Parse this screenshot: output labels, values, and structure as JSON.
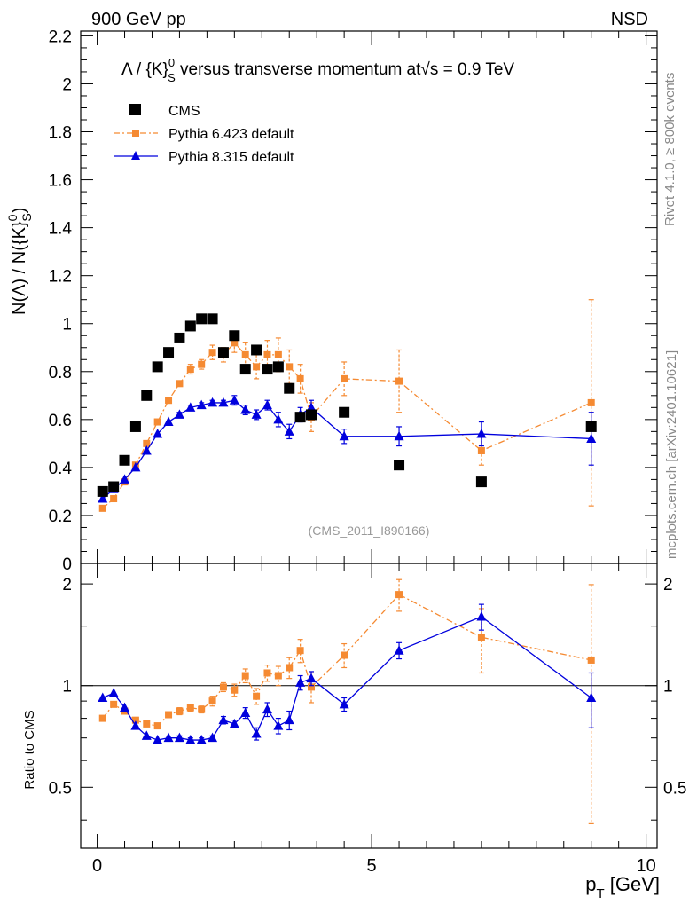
{
  "header": {
    "left": "900 GeV pp",
    "right": "NSD"
  },
  "side_labels": {
    "rivet": "Rivet 4.1.0, ≥ 800k events",
    "mcplots": "mcplots.cern.ch [arXiv:2401.10621]"
  },
  "colors": {
    "cms": "#000000",
    "pythia6": "#f58a32",
    "pythia8": "#0000dd"
  },
  "chart_data": [
    {
      "type": "scatter",
      "title": "Λ / {K}⁰ₛ versus transverse momentum at√s = 0.9 TeV",
      "title_parts": [
        "Λ / {K}",
        "0",
        "S",
        " versus transverse momentum at",
        "√",
        "s = 0.9 TeV"
      ],
      "ylabel": "N(Λ)  /  N({K}⁰ₛ)",
      "ylabel_parts": [
        "N(Λ)  /  N({K}",
        "0",
        "S",
        ")"
      ],
      "watermark": "(CMS_2011_I890166)",
      "xlim": [
        -0.3,
        10.2
      ],
      "ylim": [
        0,
        2.22
      ],
      "yticks": [
        0,
        0.2,
        0.4,
        0.6,
        0.8,
        1,
        1.2,
        1.4,
        1.6,
        1.8,
        2,
        2.2
      ],
      "ytick_labels": [
        "0",
        "0.2",
        "0.4",
        "0.6",
        "0.8",
        "1",
        "1.2",
        "1.4",
        "1.6",
        "1.8",
        "2",
        "2.2"
      ],
      "legend": {
        "placement": "top-left",
        "entries": [
          "CMS",
          "Pythia 6.423 default",
          "Pythia 8.315 default"
        ]
      },
      "series": [
        {
          "name": "CMS",
          "marker": "square",
          "x": [
            0.1,
            0.3,
            0.5,
            0.7,
            0.9,
            1.1,
            1.3,
            1.5,
            1.7,
            1.9,
            2.1,
            2.3,
            2.5,
            2.7,
            2.9,
            3.1,
            3.3,
            3.5,
            3.7,
            3.9,
            4.5,
            5.5,
            7.0,
            9.0
          ],
          "y": [
            0.3,
            0.32,
            0.43,
            0.57,
            0.7,
            0.82,
            0.88,
            0.94,
            0.99,
            1.02,
            1.02,
            0.88,
            0.95,
            0.81,
            0.89,
            0.81,
            0.82,
            0.73,
            0.61,
            0.62,
            0.63,
            0.41,
            0.34,
            0.57
          ]
        },
        {
          "name": "Pythia 6.423 default",
          "marker": "square-small",
          "line": "dashdot",
          "x": [
            0.1,
            0.3,
            0.5,
            0.7,
            0.9,
            1.1,
            1.3,
            1.5,
            1.7,
            1.9,
            2.1,
            2.3,
            2.5,
            2.7,
            2.9,
            3.1,
            3.3,
            3.5,
            3.7,
            3.9,
            4.5,
            5.5,
            7.0,
            9.0
          ],
          "y": [
            0.23,
            0.27,
            0.34,
            0.41,
            0.5,
            0.59,
            0.68,
            0.75,
            0.81,
            0.83,
            0.88,
            0.87,
            0.92,
            0.87,
            0.82,
            0.87,
            0.87,
            0.82,
            0.77,
            0.61,
            0.77,
            0.76,
            0.47,
            0.67
          ],
          "err": [
            0.0,
            0.0,
            0.0,
            0.0,
            0.0,
            0.0,
            0.0,
            0.01,
            0.02,
            0.02,
            0.03,
            0.03,
            0.04,
            0.05,
            0.05,
            0.06,
            0.07,
            0.07,
            0.06,
            0.06,
            0.07,
            0.13,
            0.06,
            0.43
          ]
        },
        {
          "name": "Pythia 8.315 default",
          "marker": "triangle",
          "line": "solid",
          "x": [
            0.1,
            0.3,
            0.5,
            0.7,
            0.9,
            1.1,
            1.3,
            1.5,
            1.7,
            1.9,
            2.1,
            2.3,
            2.5,
            2.7,
            2.9,
            3.1,
            3.3,
            3.5,
            3.7,
            3.9,
            4.5,
            5.5,
            7.0,
            9.0
          ],
          "y": [
            0.27,
            0.31,
            0.35,
            0.4,
            0.47,
            0.54,
            0.59,
            0.62,
            0.65,
            0.66,
            0.67,
            0.67,
            0.68,
            0.64,
            0.62,
            0.66,
            0.6,
            0.55,
            0.62,
            0.65,
            0.53,
            0.53,
            0.54,
            0.52
          ],
          "err": [
            0.0,
            0.0,
            0.0,
            0.0,
            0.0,
            0.0,
            0.0,
            0.01,
            0.01,
            0.01,
            0.01,
            0.01,
            0.02,
            0.02,
            0.02,
            0.02,
            0.03,
            0.03,
            0.03,
            0.03,
            0.03,
            0.04,
            0.05,
            0.11
          ]
        }
      ]
    },
    {
      "type": "scatter",
      "title": "",
      "ylabel": "Ratio to CMS",
      "xlabel": "p_T [GeV]",
      "xlabel_parts": [
        "p",
        "T",
        " [GeV]"
      ],
      "xlim": [
        -0.3,
        10.2
      ],
      "ylim": [
        0.33,
        2.3
      ],
      "yscale": "log",
      "yticks": [
        0.5,
        1,
        2
      ],
      "ytick_labels": [
        "0.5",
        "1",
        "2"
      ],
      "xticks": [
        0,
        5,
        10
      ],
      "xtick_labels": [
        "0",
        "5",
        "10"
      ],
      "reference_line": 1,
      "series": [
        {
          "name": "Pythia 6.423 default",
          "marker": "square-small",
          "line": "dashdot",
          "x": [
            0.1,
            0.3,
            0.5,
            0.7,
            0.9,
            1.1,
            1.3,
            1.5,
            1.7,
            1.9,
            2.1,
            2.3,
            2.5,
            2.7,
            2.9,
            3.1,
            3.3,
            3.5,
            3.7,
            3.9,
            4.5,
            5.5,
            7.0,
            9.0
          ],
          "y": [
            0.8,
            0.88,
            0.84,
            0.79,
            0.77,
            0.76,
            0.82,
            0.84,
            0.86,
            0.85,
            0.9,
            0.99,
            0.97,
            1.07,
            0.93,
            1.09,
            1.07,
            1.13,
            1.27,
            0.99,
            1.23,
            1.86,
            1.39,
            1.19
          ],
          "err": [
            0.01,
            0.01,
            0.01,
            0.01,
            0.01,
            0.01,
            0.01,
            0.02,
            0.02,
            0.02,
            0.03,
            0.03,
            0.04,
            0.05,
            0.05,
            0.06,
            0.07,
            0.08,
            0.1,
            0.1,
            0.1,
            0.2,
            0.3,
            0.8
          ]
        },
        {
          "name": "Pythia 8.315 default",
          "marker": "triangle",
          "line": "solid",
          "x": [
            0.1,
            0.3,
            0.5,
            0.7,
            0.9,
            1.1,
            1.3,
            1.5,
            1.7,
            1.9,
            2.1,
            2.3,
            2.5,
            2.7,
            2.9,
            3.1,
            3.3,
            3.5,
            3.7,
            3.9,
            4.5,
            5.5,
            7.0,
            9.0
          ],
          "y": [
            0.92,
            0.95,
            0.86,
            0.76,
            0.71,
            0.69,
            0.7,
            0.7,
            0.69,
            0.69,
            0.7,
            0.79,
            0.77,
            0.83,
            0.72,
            0.85,
            0.76,
            0.79,
            1.02,
            1.05,
            0.88,
            1.27,
            1.6,
            0.92
          ],
          "err": [
            0.0,
            0.0,
            0.0,
            0.0,
            0.0,
            0.0,
            0.0,
            0.01,
            0.01,
            0.01,
            0.01,
            0.02,
            0.02,
            0.03,
            0.03,
            0.04,
            0.04,
            0.05,
            0.05,
            0.05,
            0.04,
            0.07,
            0.14,
            0.17
          ]
        }
      ]
    }
  ]
}
